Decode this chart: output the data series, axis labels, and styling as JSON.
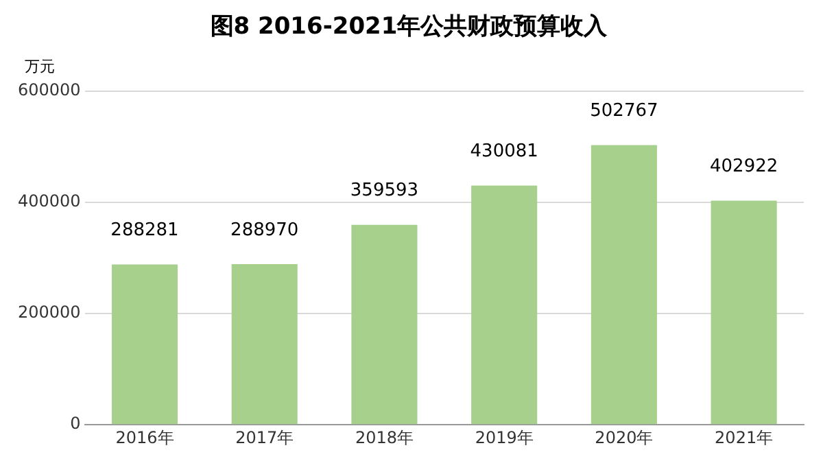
{
  "chart_data": {
    "type": "bar",
    "title": "图8 2016-2021年公共财政预算收入",
    "ylabel": "万元",
    "categories": [
      "2016年",
      "2017年",
      "2018年",
      "2019年",
      "2020年",
      "2021年"
    ],
    "values": [
      288281,
      288970,
      359593,
      430081,
      502767,
      402922
    ],
    "color": "#a6d08c",
    "ylim": [
      0,
      600000
    ],
    "yticks": [
      0,
      200000,
      400000,
      600000
    ],
    "grid": "y",
    "data_labels": true
  }
}
